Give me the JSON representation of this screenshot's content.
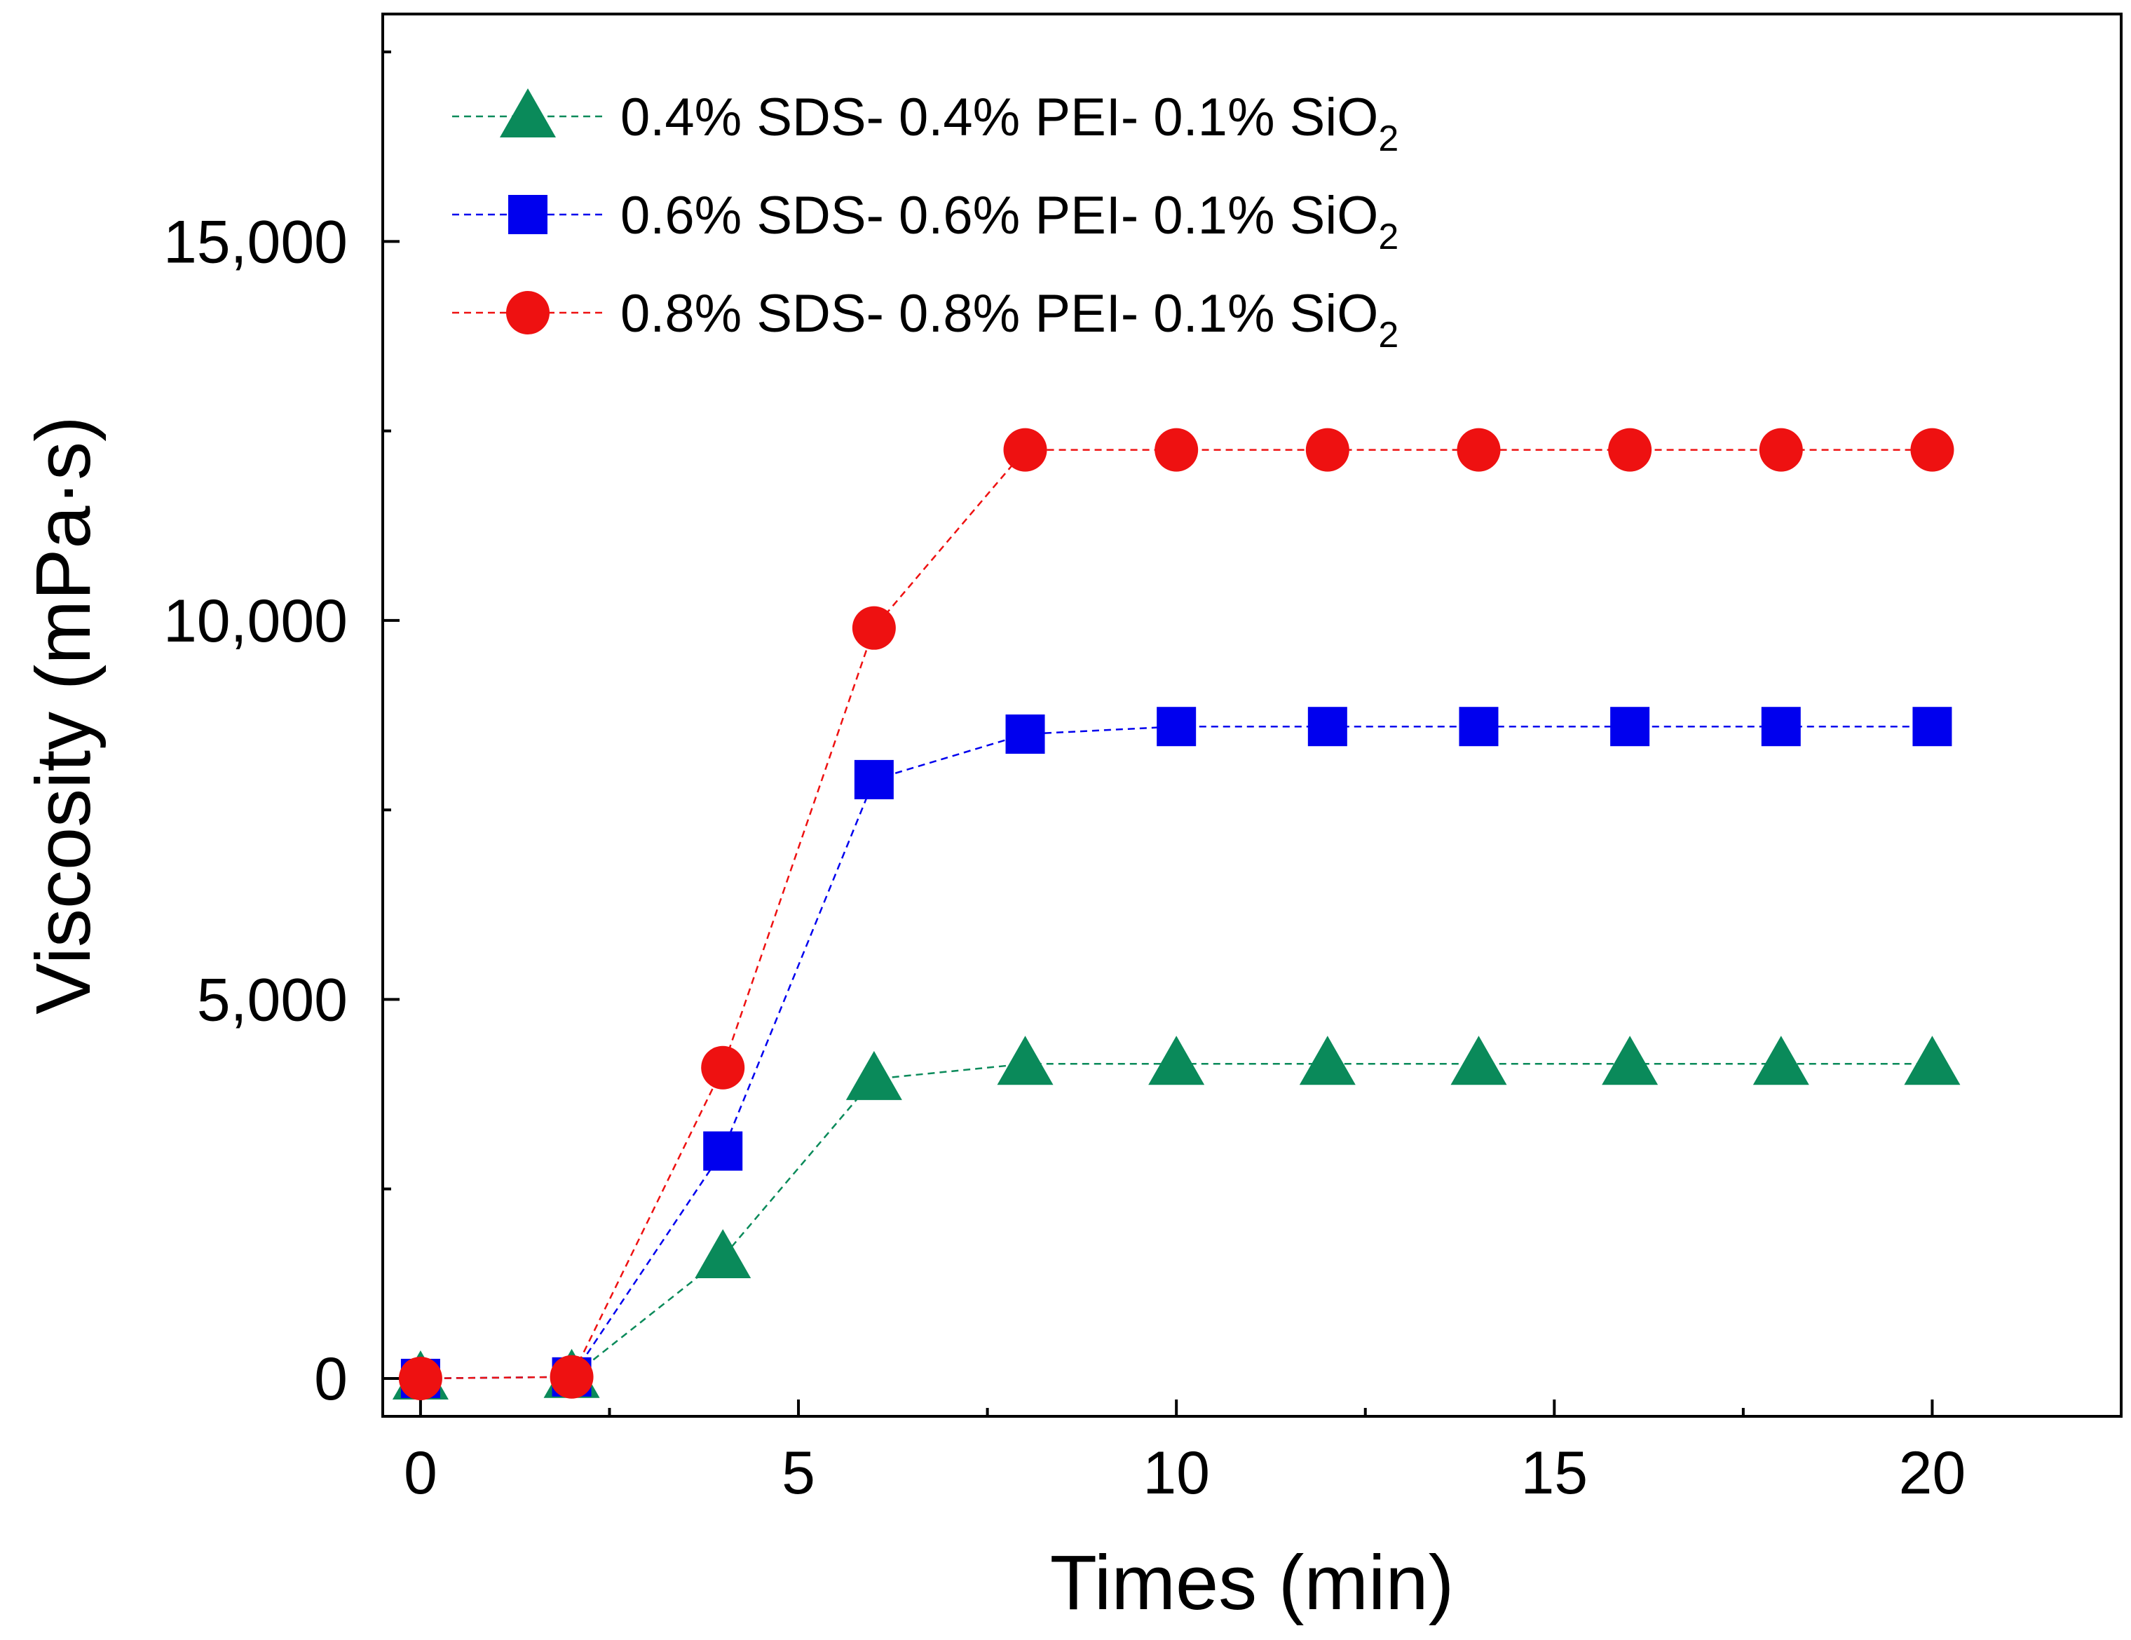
{
  "chart_data": {
    "type": "line",
    "title": "",
    "xlabel": "Times (min)",
    "ylabel": "Viscosity (mPa·s)",
    "xlim": [
      -0.5,
      22.5
    ],
    "ylim": [
      -500,
      18000
    ],
    "xticks": [
      0,
      5,
      10,
      15,
      20
    ],
    "xtick_labels": [
      "0",
      "5",
      "10",
      "15",
      "20"
    ],
    "yticks": [
      0,
      5000,
      10000,
      15000
    ],
    "ytick_labels": [
      "0",
      "5,000",
      "10,000",
      "15,000"
    ],
    "x": [
      0,
      2,
      4,
      6,
      8,
      10,
      12,
      14,
      16,
      18,
      20
    ],
    "legend_position": "top-left",
    "series": [
      {
        "name": "0.4% SDS- 0.4% PEI- 0.1% SiO2",
        "legend_main": "0.4% SDS- 0.4% PEI- 0.1% SiO",
        "legend_sub": "2",
        "marker": "triangle",
        "color": "#0a8a5a",
        "values": [
          0,
          20,
          1600,
          3950,
          4150,
          4150,
          4150,
          4150,
          4150,
          4150,
          4150
        ]
      },
      {
        "name": "0.6% SDS- 0.6% PEI- 0.1% SiO2",
        "legend_main": "0.6% SDS- 0.6% PEI- 0.1% SiO",
        "legend_sub": "2",
        "marker": "square",
        "color": "#0000ee",
        "values": [
          0,
          20,
          3000,
          7900,
          8500,
          8600,
          8600,
          8600,
          8600,
          8600,
          8600
        ]
      },
      {
        "name": "0.8% SDS- 0.8% PEI- 0.1% SiO2",
        "legend_main": "0.8% SDS- 0.8% PEI- 0.1% SiO",
        "legend_sub": "2",
        "marker": "circle",
        "color": "#ee1111",
        "values": [
          0,
          20,
          4100,
          9900,
          12250,
          12250,
          12250,
          12250,
          12250,
          12250,
          12250
        ]
      }
    ]
  }
}
